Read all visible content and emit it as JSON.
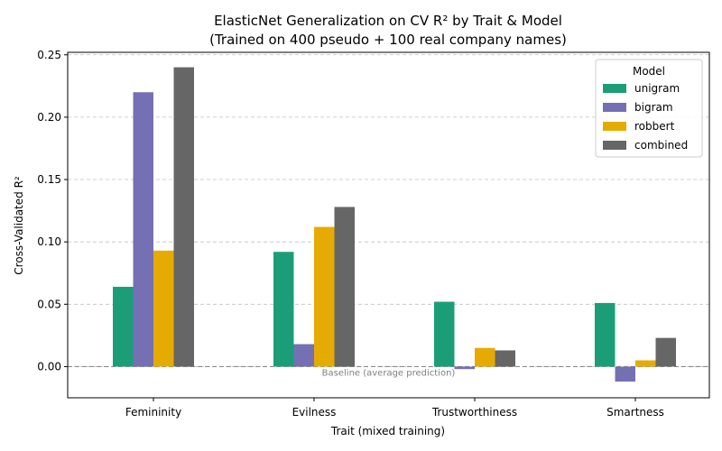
{
  "chart_data": {
    "type": "bar",
    "title": "ElasticNet Generalization on CV R² by Trait & Model",
    "subtitle": "(Trained on 400 pseudo + 100 real company names)",
    "xlabel": "Trait (mixed training)",
    "ylabel": "Cross-Validated R²",
    "categories": [
      "Femininity",
      "Evilness",
      "Trustworthiness",
      "Smartness"
    ],
    "series": [
      {
        "name": "unigram",
        "color": "#1b9e77",
        "values": [
          0.064,
          0.092,
          0.052,
          0.051
        ]
      },
      {
        "name": "bigram",
        "color": "#7570b3",
        "values": [
          0.22,
          0.018,
          -0.002,
          -0.012
        ]
      },
      {
        "name": "robbert",
        "color": "#e6ab02",
        "values": [
          0.093,
          0.112,
          0.015,
          0.005
        ]
      },
      {
        "name": "combined",
        "color": "#666666",
        "values": [
          0.24,
          0.128,
          0.013,
          0.023
        ]
      }
    ],
    "ylim": [
      -0.025,
      0.252
    ],
    "yticks": [
      0.0,
      0.05,
      0.1,
      0.15,
      0.2,
      0.25
    ],
    "ytick_labels": [
      "0.00",
      "0.05",
      "0.10",
      "0.15",
      "0.20",
      "0.25"
    ],
    "grid": "y-dashed",
    "legend_title": "Model",
    "legend_position": "top-right",
    "baseline": {
      "value": 0.0,
      "label": "Baseline (average prediction)"
    }
  }
}
